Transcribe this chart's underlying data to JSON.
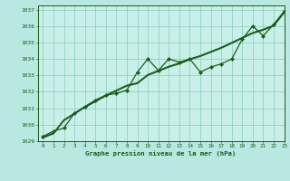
{
  "title": "Graphe pression niveau de la mer (hPa)",
  "background_color": "#b8e8e0",
  "plot_bg_color": "#c8f0e8",
  "grid_color": "#88ccbb",
  "line_color": "#1a5c1a",
  "marker_color": "#1a5c1a",
  "xlim": [
    -0.5,
    23
  ],
  "ylim": [
    1029,
    1037.25
  ],
  "yticks": [
    1029,
    1030,
    1031,
    1032,
    1033,
    1034,
    1035,
    1036,
    1037
  ],
  "xticks": [
    0,
    1,
    2,
    3,
    4,
    5,
    6,
    7,
    8,
    9,
    10,
    11,
    12,
    13,
    14,
    15,
    16,
    17,
    18,
    19,
    20,
    21,
    22,
    23
  ],
  "series1_x": [
    0,
    1,
    2,
    3,
    4,
    5,
    6,
    7,
    8,
    9,
    10,
    11,
    12,
    13,
    14,
    15,
    16,
    17,
    18,
    19,
    20,
    21,
    22,
    23
  ],
  "series1_y": [
    1029.3,
    1029.6,
    1029.8,
    1030.7,
    1031.1,
    1031.5,
    1031.8,
    1031.9,
    1032.1,
    1033.2,
    1034.0,
    1033.3,
    1034.0,
    1033.8,
    1034.0,
    1033.2,
    1033.5,
    1033.7,
    1034.0,
    1035.2,
    1036.0,
    1035.4,
    1036.1,
    1036.9
  ],
  "series2_x": [
    0,
    1,
    2,
    3,
    4,
    5,
    6,
    7,
    8,
    9,
    10,
    11,
    12,
    13,
    14,
    15,
    16,
    17,
    18,
    19,
    20,
    21,
    22,
    23
  ],
  "series2_y": [
    1029.25,
    1029.5,
    1030.3,
    1030.7,
    1031.1,
    1031.45,
    1031.8,
    1032.1,
    1032.4,
    1032.55,
    1033.05,
    1033.3,
    1033.55,
    1033.75,
    1034.0,
    1034.2,
    1034.45,
    1034.7,
    1035.0,
    1035.3,
    1035.6,
    1035.8,
    1036.05,
    1036.85
  ],
  "series3_x": [
    0,
    1,
    2,
    3,
    4,
    5,
    6,
    7,
    8,
    9,
    10,
    11,
    12,
    13,
    14,
    15,
    16,
    17,
    18,
    19,
    20,
    21,
    22,
    23
  ],
  "series3_y": [
    1029.2,
    1029.45,
    1030.25,
    1030.65,
    1031.05,
    1031.4,
    1031.75,
    1032.05,
    1032.35,
    1032.5,
    1033.0,
    1033.25,
    1033.5,
    1033.7,
    1033.95,
    1034.15,
    1034.4,
    1034.65,
    1034.95,
    1035.25,
    1035.55,
    1035.75,
    1036.0,
    1036.8
  ]
}
